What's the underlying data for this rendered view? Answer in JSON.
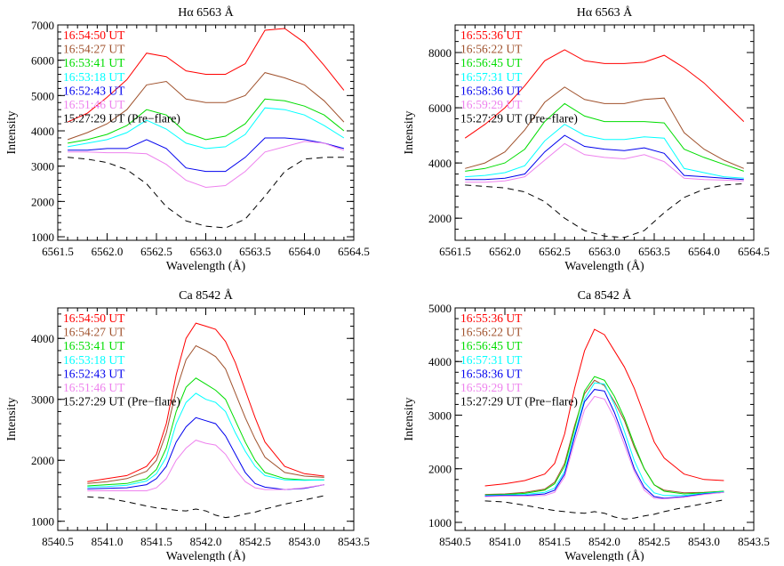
{
  "charts": [
    {
      "type": "line",
      "title": "Hα 6563 Å",
      "xlabel": "Wavelength (Å)",
      "ylabel": "Intensity",
      "xlim": [
        6561.5,
        6564.5
      ],
      "ylim": [
        900,
        7000
      ],
      "xticks": [
        6561.5,
        6562.0,
        6562.5,
        6563.0,
        6563.5,
        6564.0,
        6564.5
      ],
      "xtick_labels": [
        "6561.5",
        "6562.0",
        "6562.5",
        "6563.0",
        "6563.5",
        "6564.0",
        "6564.5"
      ],
      "yticks": [
        1000,
        2000,
        3000,
        4000,
        5000,
        6000,
        7000
      ],
      "ytick_labels": [
        "1000",
        "2000",
        "3000",
        "4000",
        "5000",
        "6000",
        "7000"
      ],
      "x": [
        6561.6,
        6561.8,
        6562.0,
        6562.2,
        6562.4,
        6562.6,
        6562.8,
        6563.0,
        6563.2,
        6563.4,
        6563.6,
        6563.8,
        6564.0,
        6564.2,
        6564.4
      ],
      "series": [
        {
          "name": "16:54:50 UT",
          "color": "#ff0000",
          "dashed": false,
          "values": [
            4250,
            4500,
            4950,
            5450,
            6200,
            6100,
            5700,
            5600,
            5600,
            5900,
            6850,
            6900,
            6500,
            5850,
            5150
          ]
        },
        {
          "name": "16:54:27 UT",
          "color": "#a0522d",
          "dashed": false,
          "values": [
            3750,
            3950,
            4200,
            4600,
            5300,
            5400,
            4900,
            4800,
            4800,
            5000,
            5650,
            5500,
            5300,
            4850,
            4250
          ]
        },
        {
          "name": "16:53:41 UT",
          "color": "#00dd00",
          "dashed": false,
          "values": [
            3650,
            3750,
            3900,
            4150,
            4600,
            4450,
            3950,
            3750,
            3850,
            4200,
            4900,
            4850,
            4700,
            4450,
            4000
          ]
        },
        {
          "name": "16:53:18 UT",
          "color": "#00ffff",
          "dashed": false,
          "values": [
            3550,
            3650,
            3750,
            3950,
            4300,
            4050,
            3650,
            3500,
            3550,
            3900,
            4650,
            4600,
            4450,
            4150,
            3800
          ]
        },
        {
          "name": "16:52:43 UT",
          "color": "#0000ee",
          "dashed": false,
          "values": [
            3450,
            3450,
            3500,
            3500,
            3750,
            3500,
            2950,
            2850,
            2850,
            3250,
            3800,
            3800,
            3750,
            3650,
            3500
          ]
        },
        {
          "name": "16:51:46 UT",
          "color": "#ee82ee",
          "dashed": false,
          "values": [
            3400,
            3400,
            3380,
            3380,
            3350,
            3050,
            2600,
            2400,
            2450,
            2850,
            3400,
            3550,
            3700,
            3650,
            3450
          ]
        },
        {
          "name": "15:27:29 UT (Pre−flare)",
          "color": "#000000",
          "dashed": true,
          "values": [
            3250,
            3200,
            3100,
            2900,
            2500,
            1850,
            1450,
            1300,
            1250,
            1500,
            2150,
            2850,
            3200,
            3250,
            3250
          ]
        }
      ]
    },
    {
      "type": "line",
      "title": "Hα 6563 Å",
      "xlabel": "Wavelength (Å)",
      "ylabel": "Intensity",
      "xlim": [
        6561.5,
        6564.5
      ],
      "ylim": [
        1200,
        9000
      ],
      "xticks": [
        6561.5,
        6562.0,
        6562.5,
        6563.0,
        6563.5,
        6564.0,
        6564.5
      ],
      "xtick_labels": [
        "6561.5",
        "6562.0",
        "6562.5",
        "6563.0",
        "6563.5",
        "6564.0",
        "6564.5"
      ],
      "yticks": [
        2000,
        4000,
        6000,
        8000
      ],
      "ytick_labels": [
        "2000",
        "4000",
        "6000",
        "8000"
      ],
      "x": [
        6561.6,
        6561.8,
        6562.0,
        6562.2,
        6562.4,
        6562.6,
        6562.8,
        6563.0,
        6563.2,
        6563.4,
        6563.6,
        6563.8,
        6564.0,
        6564.2,
        6564.4
      ],
      "series": [
        {
          "name": "16:55:36 UT",
          "color": "#ff0000",
          "dashed": false,
          "values": [
            4900,
            5400,
            6000,
            6800,
            7700,
            8100,
            7700,
            7600,
            7600,
            7650,
            7900,
            7450,
            6900,
            6200,
            5500
          ]
        },
        {
          "name": "16:56:22 UT",
          "color": "#a0522d",
          "dashed": false,
          "values": [
            3800,
            4000,
            4400,
            5200,
            6200,
            6750,
            6300,
            6150,
            6150,
            6300,
            6350,
            5100,
            4500,
            4100,
            3800
          ]
        },
        {
          "name": "16:56:45 UT",
          "color": "#00dd00",
          "dashed": false,
          "values": [
            3700,
            3800,
            4000,
            4500,
            5500,
            6150,
            5700,
            5500,
            5500,
            5500,
            5450,
            4500,
            4200,
            3950,
            3700
          ]
        },
        {
          "name": "16:57:31 UT",
          "color": "#00ffff",
          "dashed": false,
          "values": [
            3500,
            3550,
            3650,
            3900,
            4800,
            5400,
            5000,
            4850,
            4850,
            4950,
            4900,
            3800,
            3650,
            3500,
            3450
          ]
        },
        {
          "name": "16:58:36 UT",
          "color": "#0000ee",
          "dashed": false,
          "values": [
            3400,
            3400,
            3450,
            3600,
            4400,
            5000,
            4600,
            4500,
            4450,
            4550,
            4350,
            3550,
            3500,
            3450,
            3400
          ]
        },
        {
          "name": "16:59:29 UT",
          "color": "#ee82ee",
          "dashed": false,
          "values": [
            3300,
            3300,
            3350,
            3500,
            4100,
            4700,
            4300,
            4200,
            4150,
            4300,
            4050,
            3450,
            3400,
            3380,
            3350
          ]
        },
        {
          "name": "15:27:29 UT (Pre−flare)",
          "color": "#000000",
          "dashed": true,
          "values": [
            3200,
            3150,
            3100,
            2950,
            2600,
            2000,
            1550,
            1350,
            1300,
            1550,
            2200,
            2750,
            3050,
            3200,
            3250
          ]
        }
      ]
    },
    {
      "type": "line",
      "title": "Ca 8542 Å",
      "xlabel": "Wavelength (Å)",
      "ylabel": "Intensity",
      "xlim": [
        8540.5,
        8543.5
      ],
      "ylim": [
        850,
        4500
      ],
      "xticks": [
        8540.5,
        8541.0,
        8541.5,
        8542.0,
        8542.5,
        8543.0,
        8543.5
      ],
      "xtick_labels": [
        "8540.5",
        "8541.0",
        "8541.5",
        "8542.0",
        "8542.5",
        "8543.0",
        "8543.5"
      ],
      "yticks": [
        1000,
        2000,
        3000,
        4000
      ],
      "ytick_labels": [
        "1000",
        "2000",
        "3000",
        "4000"
      ],
      "x": [
        8540.8,
        8541.0,
        8541.2,
        8541.4,
        8541.5,
        8541.6,
        8541.7,
        8541.8,
        8541.9,
        8542.0,
        8542.1,
        8542.2,
        8542.3,
        8542.4,
        8542.5,
        8542.6,
        8542.8,
        8543.0,
        8543.2
      ],
      "series": [
        {
          "name": "16:54:50 UT",
          "color": "#ff0000",
          "dashed": false,
          "values": [
            1650,
            1700,
            1750,
            1900,
            2100,
            2600,
            3400,
            4000,
            4250,
            4200,
            4150,
            3950,
            3600,
            3150,
            2700,
            2300,
            1900,
            1780,
            1740
          ]
        },
        {
          "name": "16:54:27 UT",
          "color": "#a0522d",
          "dashed": false,
          "values": [
            1620,
            1650,
            1700,
            1820,
            2000,
            2450,
            3150,
            3650,
            3880,
            3800,
            3700,
            3500,
            3100,
            2700,
            2350,
            2050,
            1800,
            1740,
            1720
          ]
        },
        {
          "name": "16:53:41 UT",
          "color": "#00dd00",
          "dashed": false,
          "values": [
            1580,
            1600,
            1620,
            1700,
            1850,
            2200,
            2800,
            3200,
            3350,
            3250,
            3150,
            3000,
            2650,
            2300,
            2000,
            1800,
            1700,
            1680,
            1680
          ]
        },
        {
          "name": "16:53:18 UT",
          "color": "#00ffff",
          "dashed": false,
          "values": [
            1560,
            1570,
            1590,
            1660,
            1780,
            2050,
            2600,
            2950,
            3100,
            3000,
            2950,
            2800,
            2450,
            2150,
            1900,
            1750,
            1680,
            1670,
            1680
          ]
        },
        {
          "name": "16:52:43 UT",
          "color": "#0000ee",
          "dashed": false,
          "values": [
            1530,
            1540,
            1550,
            1600,
            1700,
            1900,
            2300,
            2550,
            2700,
            2650,
            2600,
            2400,
            2100,
            1800,
            1620,
            1560,
            1520,
            1540,
            1600
          ]
        },
        {
          "name": "16:51:46 UT",
          "color": "#ee82ee",
          "dashed": false,
          "values": [
            1500,
            1500,
            1500,
            1500,
            1550,
            1700,
            2000,
            2200,
            2330,
            2280,
            2250,
            2100,
            1850,
            1650,
            1550,
            1520,
            1520,
            1550,
            1600
          ]
        },
        {
          "name": "15:27:29 UT (Pre−flare)",
          "color": "#000000",
          "dashed": true,
          "values": [
            1400,
            1380,
            1320,
            1250,
            1220,
            1200,
            1180,
            1170,
            1200,
            1170,
            1100,
            1060,
            1080,
            1120,
            1150,
            1200,
            1280,
            1350,
            1420
          ]
        }
      ]
    },
    {
      "type": "line",
      "title": "Ca 8542 Å",
      "xlabel": "Wavelength (Å)",
      "ylabel": "Intensity",
      "xlim": [
        8540.5,
        8543.5
      ],
      "ylim": [
        850,
        5000
      ],
      "xticks": [
        8540.5,
        8541.0,
        8541.5,
        8542.0,
        8542.5,
        8543.0,
        8543.5
      ],
      "xtick_labels": [
        "8540.5",
        "8541.0",
        "8541.5",
        "8542.0",
        "8542.5",
        "8543.0",
        "8543.5"
      ],
      "yticks": [
        1000,
        2000,
        3000,
        4000,
        5000
      ],
      "ytick_labels": [
        "1000",
        "2000",
        "3000",
        "4000",
        "5000"
      ],
      "x": [
        8540.8,
        8541.0,
        8541.2,
        8541.4,
        8541.5,
        8541.6,
        8541.7,
        8541.8,
        8541.9,
        8542.0,
        8542.1,
        8542.2,
        8542.3,
        8542.4,
        8542.5,
        8542.6,
        8542.8,
        8543.0,
        8543.2
      ],
      "series": [
        {
          "name": "16:55:36 UT",
          "color": "#ff0000",
          "dashed": false,
          "values": [
            1680,
            1720,
            1780,
            1900,
            2100,
            2650,
            3500,
            4200,
            4600,
            4500,
            4200,
            3900,
            3500,
            3000,
            2500,
            2200,
            1900,
            1800,
            1780
          ]
        },
        {
          "name": "16:56:22 UT",
          "color": "#a0522d",
          "dashed": false,
          "values": [
            1520,
            1530,
            1560,
            1620,
            1750,
            2100,
            2800,
            3400,
            3650,
            3550,
            3250,
            2900,
            2400,
            2000,
            1700,
            1600,
            1550,
            1560,
            1580
          ]
        },
        {
          "name": "16:56:45 UT",
          "color": "#00dd00",
          "dashed": false,
          "values": [
            1510,
            1520,
            1540,
            1600,
            1720,
            2050,
            2750,
            3450,
            3720,
            3650,
            3350,
            2950,
            2450,
            2000,
            1700,
            1580,
            1530,
            1550,
            1580
          ]
        },
        {
          "name": "16:57:31 UT",
          "color": "#00ffff",
          "dashed": false,
          "values": [
            1500,
            1510,
            1520,
            1560,
            1640,
            1950,
            2650,
            3300,
            3600,
            3580,
            3200,
            2700,
            2150,
            1750,
            1550,
            1500,
            1500,
            1540,
            1570
          ]
        },
        {
          "name": "16:58:36 UT",
          "color": "#0000ee",
          "dashed": false,
          "values": [
            1490,
            1500,
            1500,
            1530,
            1600,
            1900,
            2600,
            3250,
            3480,
            3450,
            3050,
            2550,
            2000,
            1650,
            1480,
            1450,
            1480,
            1530,
            1560
          ]
        },
        {
          "name": "16:59:29 UT",
          "color": "#ee82ee",
          "dashed": false,
          "values": [
            1480,
            1490,
            1490,
            1500,
            1560,
            1850,
            2500,
            3100,
            3350,
            3300,
            2950,
            2450,
            1950,
            1600,
            1450,
            1440,
            1470,
            1520,
            1560
          ]
        },
        {
          "name": "15:27:29 UT (Pre−flare)",
          "color": "#000000",
          "dashed": true,
          "values": [
            1400,
            1380,
            1320,
            1250,
            1220,
            1200,
            1180,
            1170,
            1200,
            1170,
            1100,
            1060,
            1080,
            1120,
            1150,
            1200,
            1280,
            1350,
            1420
          ]
        }
      ]
    }
  ],
  "chart_data": [
    {
      "type": "line",
      "title": "Hα 6563 Å",
      "panel": "top-left"
    },
    {
      "type": "line",
      "title": "Hα 6563 Å",
      "panel": "top-right"
    },
    {
      "type": "line",
      "title": "Ca 8542 Å",
      "panel": "bottom-left"
    },
    {
      "type": "line",
      "title": "Ca 8542 Å",
      "panel": "bottom-right"
    }
  ]
}
